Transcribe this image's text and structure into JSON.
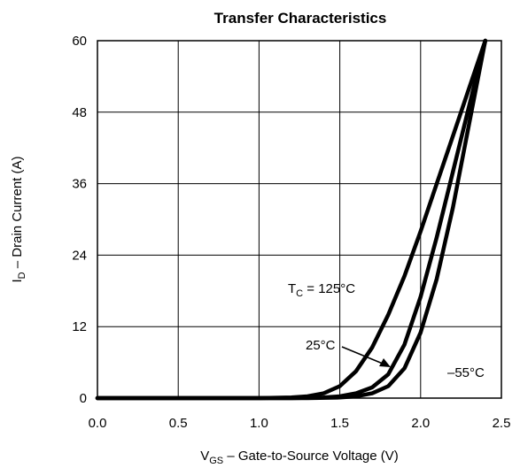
{
  "chart_data": {
    "type": "line",
    "title": "Transfer Characteristics",
    "xlabel": {
      "main": "V",
      "sub": "GS",
      "rest": "  –  Gate-to-Source Voltage (V)"
    },
    "ylabel": {
      "main": "I",
      "sub": "D",
      "rest": "  –  Drain Current (A)"
    },
    "xlim": [
      0.0,
      2.5
    ],
    "ylim": [
      0,
      60
    ],
    "xticks": [
      0.0,
      0.5,
      1.0,
      1.5,
      2.0,
      2.5
    ],
    "xtick_labels": [
      "0.0",
      "0.5",
      "1.0",
      "1.5",
      "2.0",
      "2.5"
    ],
    "yticks": [
      0,
      12,
      24,
      36,
      48,
      60
    ],
    "ytick_labels": [
      "0",
      "12",
      "24",
      "36",
      "48",
      "60"
    ],
    "grid": true,
    "series": [
      {
        "key": "t125",
        "label": "TC = 125°C",
        "x": [
          0.0,
          1.0,
          1.2,
          1.3,
          1.4,
          1.5,
          1.6,
          1.7,
          1.8,
          1.9,
          2.0,
          2.1,
          2.2,
          2.3,
          2.4
        ],
        "y": [
          0,
          0,
          0.1,
          0.3,
          0.8,
          2.0,
          4.5,
          8.5,
          14.0,
          20.5,
          28.0,
          36.0,
          44.0,
          52.0,
          60.0
        ]
      },
      {
        "key": "t25",
        "label": "25°C",
        "x": [
          0.0,
          1.2,
          1.4,
          1.5,
          1.6,
          1.7,
          1.8,
          1.9,
          2.0,
          2.1,
          2.2,
          2.3,
          2.4
        ],
        "y": [
          0,
          0,
          0.1,
          0.3,
          0.8,
          1.8,
          4.0,
          9.0,
          17.0,
          27.0,
          38.0,
          49.0,
          60.0
        ]
      },
      {
        "key": "tm55",
        "label": "–55°C",
        "x": [
          0.0,
          1.3,
          1.5,
          1.6,
          1.7,
          1.8,
          1.9,
          2.0,
          2.1,
          2.2,
          2.3,
          2.4
        ],
        "y": [
          0,
          0,
          0.1,
          0.3,
          0.8,
          2.0,
          5.0,
          11.0,
          20.0,
          32.0,
          46.0,
          60.0
        ]
      }
    ],
    "annotations": {
      "t125": {
        "main": "T",
        "sub": "C",
        "rest": " = 125°C"
      },
      "t25": "25°C",
      "tm55": "–55°C"
    }
  }
}
